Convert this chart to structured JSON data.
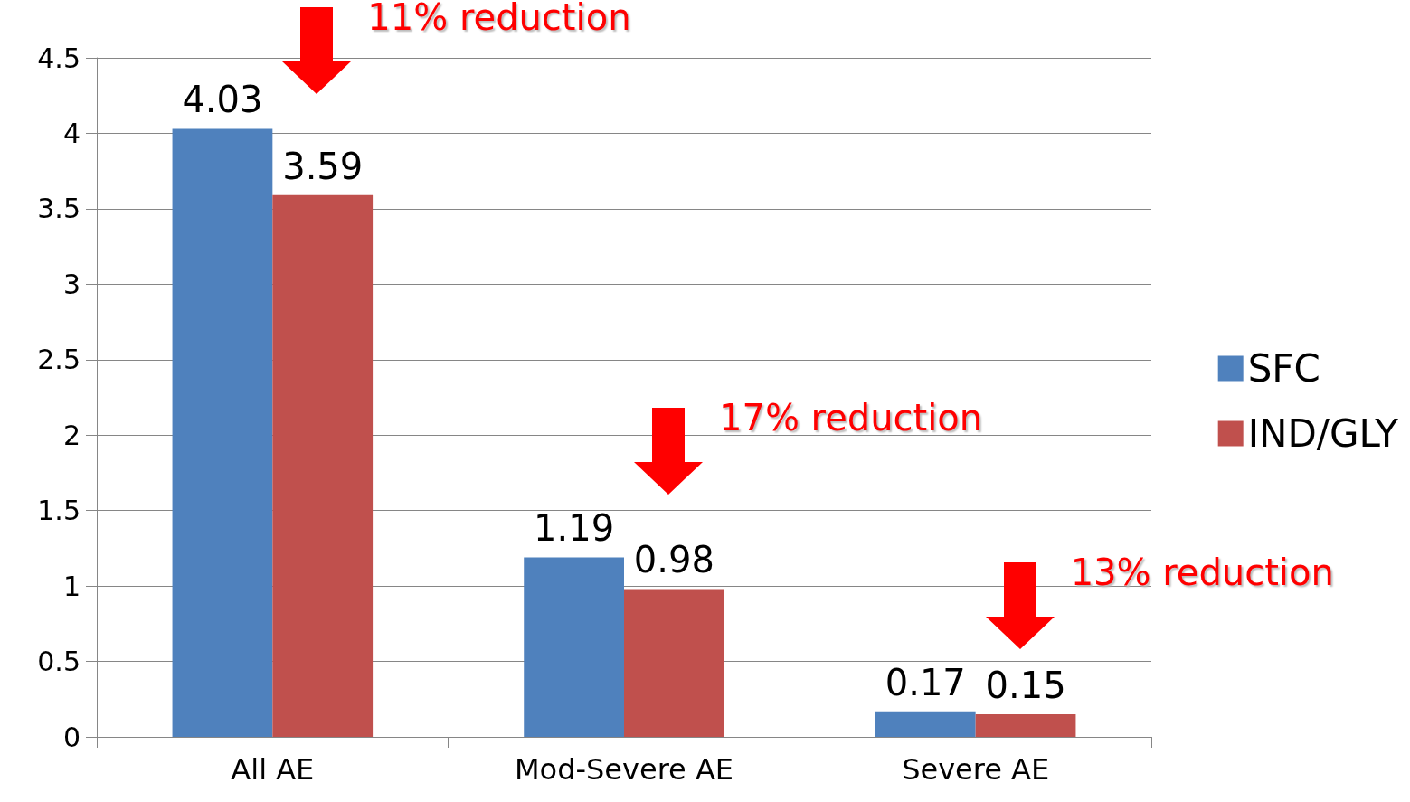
{
  "chart_data": {
    "type": "bar",
    "categories": [
      "All AE",
      "Mod-Severe AE",
      "Severe AE"
    ],
    "series": [
      {
        "name": "SFC",
        "color": "#4f81bd",
        "values": [
          4.03,
          1.19,
          0.17
        ]
      },
      {
        "name": "IND/GLY",
        "color": "#c0504d",
        "values": [
          3.59,
          0.98,
          0.15
        ]
      }
    ],
    "ylim": [
      0,
      4.5
    ],
    "yticks": [
      0,
      0.5,
      1,
      1.5,
      2,
      2.5,
      3,
      3.5,
      4,
      4.5
    ],
    "grid": "y",
    "legend": "right",
    "data_labels": true,
    "annotations": [
      "11% reduction",
      "17% reduction",
      "13% reduction"
    ]
  }
}
